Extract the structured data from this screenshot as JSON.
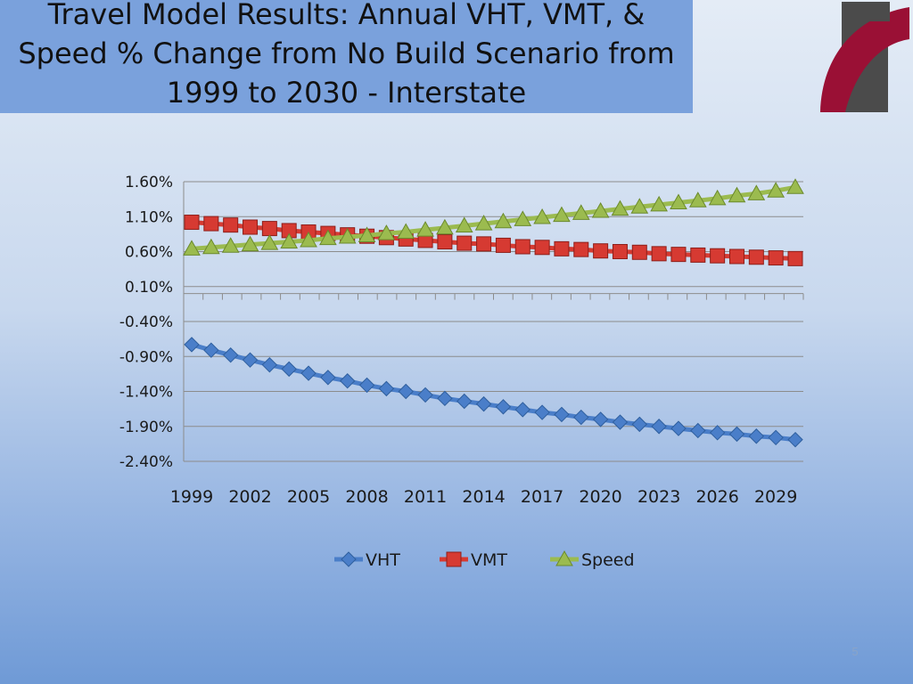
{
  "slide": {
    "title": "Travel Model Results: Annual VHT, VMT, & Speed % Change from No Build Scenario from 1999 to 2030 - Interstate",
    "page_number": "5",
    "logo_icon": "sanral-logo-icon"
  },
  "colors": {
    "vht": "#4a7ec9",
    "vmt": "#d63a32",
    "speed": "#9bbb4f"
  },
  "chart_data": {
    "type": "line",
    "title": "",
    "xlabel": "",
    "ylabel": "",
    "x": [
      1999,
      2000,
      2001,
      2002,
      2003,
      2004,
      2005,
      2006,
      2007,
      2008,
      2009,
      2010,
      2011,
      2012,
      2013,
      2014,
      2015,
      2016,
      2017,
      2018,
      2019,
      2020,
      2021,
      2022,
      2023,
      2024,
      2025,
      2026,
      2027,
      2028,
      2029,
      2030
    ],
    "x_tick_labels": [
      "1999",
      "2002",
      "2005",
      "2008",
      "2011",
      "2014",
      "2017",
      "2020",
      "2023",
      "2026",
      "2029"
    ],
    "y_tick_labels": [
      "1.60%",
      "1.10%",
      "0.60%",
      "0.10%",
      "-0.40%",
      "-0.90%",
      "-1.40%",
      "-1.90%",
      "-2.40%"
    ],
    "ylim": [
      -2.4,
      1.6
    ],
    "y_unit": "%",
    "grid": "horizontal",
    "legend_position": "bottom",
    "series": [
      {
        "name": "VHT",
        "marker": "diamond",
        "values": [
          -0.73,
          -0.81,
          -0.88,
          -0.95,
          -1.02,
          -1.08,
          -1.14,
          -1.2,
          -1.25,
          -1.31,
          -1.36,
          -1.4,
          -1.45,
          -1.5,
          -1.54,
          -1.58,
          -1.62,
          -1.66,
          -1.7,
          -1.73,
          -1.77,
          -1.8,
          -1.84,
          -1.87,
          -1.9,
          -1.93,
          -1.96,
          -1.99,
          -2.01,
          -2.04,
          -2.06,
          -2.09
        ]
      },
      {
        "name": "VMT",
        "marker": "square",
        "values": [
          1.02,
          1.0,
          0.98,
          0.95,
          0.93,
          0.9,
          0.88,
          0.86,
          0.84,
          0.82,
          0.8,
          0.78,
          0.76,
          0.74,
          0.72,
          0.71,
          0.69,
          0.67,
          0.66,
          0.64,
          0.63,
          0.61,
          0.6,
          0.59,
          0.57,
          0.56,
          0.55,
          0.54,
          0.53,
          0.52,
          0.51,
          0.5
        ]
      },
      {
        "name": "Speed",
        "marker": "triangle",
        "values": [
          0.64,
          0.66,
          0.68,
          0.7,
          0.72,
          0.74,
          0.76,
          0.79,
          0.81,
          0.83,
          0.86,
          0.88,
          0.91,
          0.94,
          0.97,
          1.0,
          1.03,
          1.06,
          1.09,
          1.12,
          1.15,
          1.18,
          1.21,
          1.24,
          1.27,
          1.3,
          1.33,
          1.36,
          1.4,
          1.43,
          1.47,
          1.52
        ]
      }
    ]
  }
}
